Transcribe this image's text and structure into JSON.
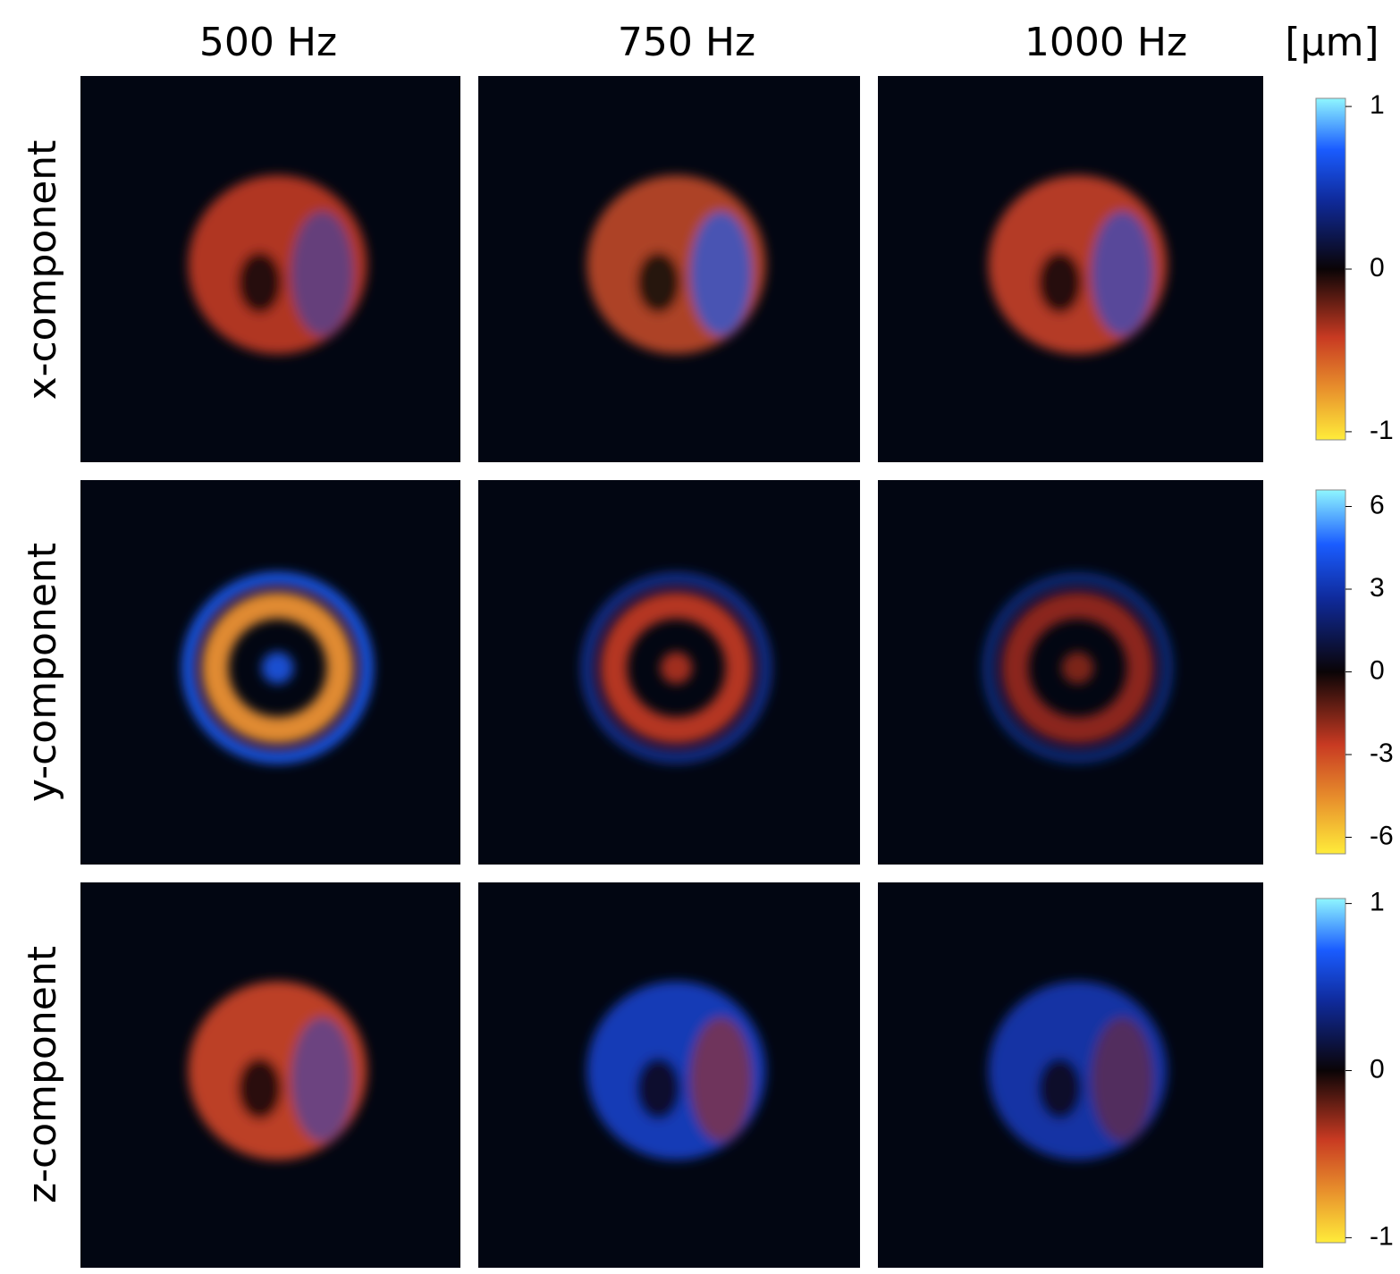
{
  "columns": [
    "500 Hz",
    "750 Hz",
    "1000 Hz"
  ],
  "rows": [
    "x-component",
    "y-component",
    "z-component"
  ],
  "unit": "[µm]",
  "colorbars": [
    {
      "ylim": [
        -1.05,
        1.05
      ],
      "yticks": [
        1,
        0,
        -1
      ]
    },
    {
      "ylim": [
        -6.6,
        6.6
      ],
      "yticks": [
        6,
        3,
        0,
        -3,
        -6
      ]
    },
    {
      "ylim": [
        -1.03,
        1.03
      ],
      "yticks": [
        1,
        0,
        -1
      ]
    }
  ]
}
